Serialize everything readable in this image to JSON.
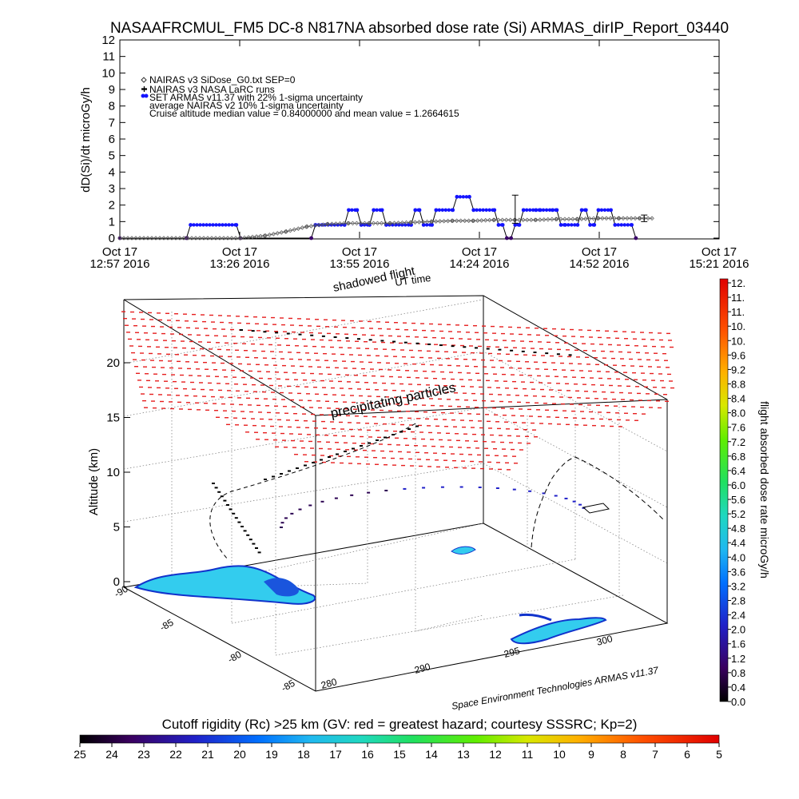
{
  "title": "NASAAFRCMUL_FM5 DC-8   N817NA absorbed dose rate (Si) ARMAS_dirIP_Report_03440",
  "chart_data": [
    {
      "type": "line",
      "ylabel": "dD(Si)/dt microGy/h",
      "xlabel": "",
      "ylim": [
        0,
        12
      ],
      "y_ticks": [
        "0",
        "1",
        "2",
        "3",
        "4",
        "5",
        "6",
        "7",
        "8",
        "9",
        "10",
        "11",
        "12"
      ],
      "x_ticks": [
        {
          "top": "Oct 17",
          "bottom": "12:57 2016"
        },
        {
          "top": "Oct 17",
          "bottom": "13:26 2016"
        },
        {
          "top": "Oct 17",
          "bottom": "13:55 2016"
        },
        {
          "top": "Oct 17",
          "bottom": "14:24 2016"
        },
        {
          "top": "Oct 17",
          "bottom": "14:52 2016"
        },
        {
          "top": "Oct 17",
          "bottom": "15:21 2016"
        }
      ],
      "xlim_minutes": [
        0,
        144
      ],
      "legend": [
        "NAIRAS v3 SiDose_G0.txt SEP=0",
        "NAIRAS v3 NASA LaRC runs",
        "SET ARMAS v11.37 with 22% 1-sigma uncertainty",
        "average NAIRAS v2 10% 1-sigma uncertainty",
        "Cruise altitude median value = 0.84000000 and mean value = 1.2664615"
      ],
      "series": [
        {
          "name": "SET ARMAS v11.37 with 22% 1-sigma uncertainty",
          "color": "#1414ff",
          "x": [
            0,
            16,
            17,
            28,
            29,
            46,
            47,
            54,
            55,
            57,
            58,
            60,
            61,
            63,
            64,
            70,
            71,
            72,
            73,
            75,
            76,
            80,
            81,
            84,
            85,
            90,
            91,
            92,
            93,
            94,
            95,
            96,
            97,
            100,
            101,
            104,
            105,
            106,
            107,
            110,
            111,
            112,
            113,
            114,
            115,
            118,
            119,
            123,
            124
          ],
          "y": [
            0,
            0,
            0.8,
            0.8,
            0,
            0,
            0.8,
            0.8,
            1.7,
            1.7,
            0.8,
            0.8,
            1.7,
            1.7,
            0.8,
            0.8,
            1.7,
            1.7,
            0.8,
            0.8,
            1.7,
            1.7,
            2.5,
            2.5,
            1.7,
            1.7,
            0.8,
            0.8,
            0,
            0,
            0.8,
            0.8,
            1.7,
            1.7,
            1.7,
            1.7,
            1.7,
            0.8,
            0.8,
            0.8,
            1.7,
            1.7,
            0.8,
            0.8,
            1.7,
            1.7,
            0.8,
            0.8,
            0
          ]
        },
        {
          "name": "NAIRAS v3 SiDose_G0.txt SEP=0",
          "color": "#555555",
          "x": [
            0,
            29,
            35,
            40,
            45,
            50,
            55,
            60,
            65,
            70,
            75,
            80,
            85,
            90,
            95,
            100,
            105,
            110,
            115,
            120,
            125,
            128
          ],
          "y": [
            0,
            0,
            0.15,
            0.4,
            0.7,
            0.85,
            0.9,
            0.9,
            0.9,
            0.95,
            1.0,
            1.05,
            1.05,
            1.1,
            1.1,
            1.1,
            1.15,
            1.15,
            1.2,
            1.2,
            1.2,
            1.2
          ]
        }
      ]
    },
    {
      "type": "scatter",
      "zlabel": "Altitude (km)",
      "z_ticks": [
        "0",
        "5",
        "10",
        "15",
        "20"
      ],
      "lat_ticks": [
        "-90",
        "-85",
        "-80",
        "-85"
      ],
      "lon_ticks": [
        "280",
        "290",
        "295",
        "300"
      ],
      "annotations": [
        "shadowed flight",
        "UT time",
        "precipitating particles"
      ],
      "credit": "Space Environment Technologies ARMAS v11.37",
      "colorbar_label": "flight absorbed dose rate microGy/h",
      "colorbar_ticks": [
        "12.",
        "11.",
        "11.",
        "10.",
        "10.",
        "9.6",
        "9.2",
        "8.8",
        "8.4",
        "8.0",
        "7.6",
        "7.2",
        "6.8",
        "6.4",
        "6.0",
        "5.6",
        "5.2",
        "4.8",
        "4.4",
        "4.0",
        "3.6",
        "3.2",
        "2.8",
        "2.4",
        "2.0",
        "1.6",
        "1.2",
        "0.8",
        "0.4",
        "0.0"
      ]
    },
    {
      "type": "heatmap",
      "title": "Cutoff rigidity (Rc) >25 km (GV: red = greatest hazard; courtesy SSSRC; Kp=2)",
      "ticks": [
        "25",
        "24",
        "23",
        "22",
        "21",
        "20",
        "19",
        "18",
        "17",
        "16",
        "15",
        "14",
        "13",
        "12",
        "11",
        "10",
        "9",
        "8",
        "7",
        "6",
        "5"
      ]
    }
  ],
  "colors": {
    "armas_blue": "#1414ff",
    "nairas_grey": "#555555",
    "precip_red": "#e61e1e",
    "ice_cyan": "#33ccee",
    "ice_blue": "#1133cc"
  }
}
